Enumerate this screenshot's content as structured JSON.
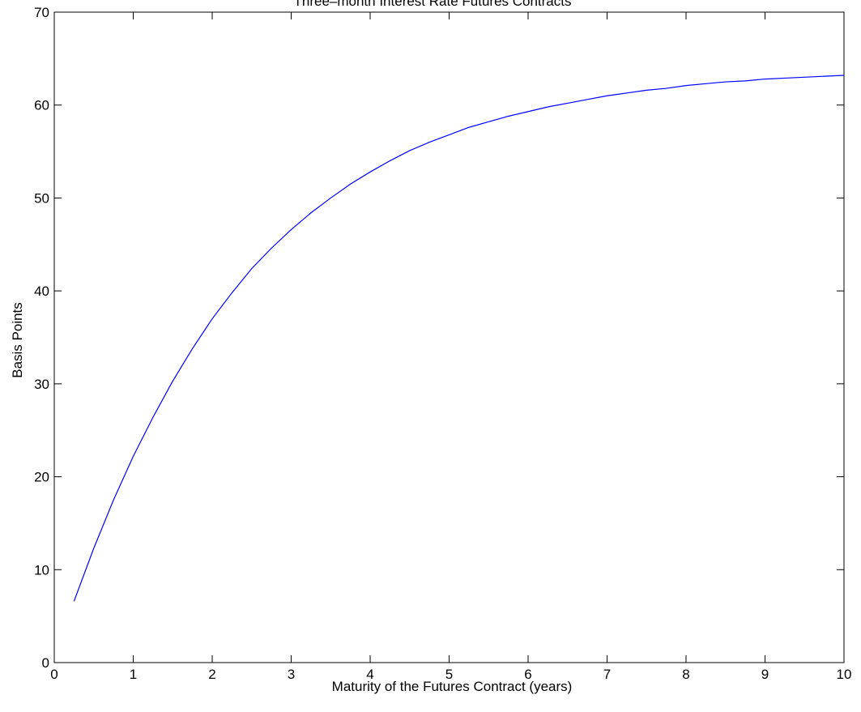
{
  "chart_data": {
    "type": "line",
    "title": "Three–month Interest Rate Futures Contracts",
    "xlabel": "Maturity of the Futures Contract (years)",
    "ylabel": "Basis Points",
    "xlim": [
      0,
      10
    ],
    "ylim": [
      0,
      70
    ],
    "xticks": [
      "0",
      "1",
      "2",
      "3",
      "4",
      "5",
      "6",
      "7",
      "8",
      "9",
      "10"
    ],
    "yticks": [
      "0",
      "10",
      "20",
      "30",
      "40",
      "50",
      "60",
      "70"
    ],
    "grid": false,
    "box": true,
    "series": [
      {
        "color": "#0000ff",
        "x": [
          0.25,
          0.5,
          0.75,
          1.0,
          1.25,
          1.5,
          1.75,
          2.0,
          2.25,
          2.5,
          2.75,
          3.0,
          3.25,
          3.5,
          3.75,
          4.0,
          4.25,
          4.5,
          4.75,
          5.0,
          5.25,
          5.5,
          5.75,
          6.0,
          6.25,
          6.5,
          6.75,
          7.0,
          7.25,
          7.5,
          7.75,
          8.0,
          8.25,
          8.5,
          8.75,
          9.0,
          9.25,
          9.5,
          9.75,
          10.0
        ],
        "y": [
          6.6,
          12.3,
          17.5,
          22.2,
          26.4,
          30.3,
          33.8,
          37.0,
          39.8,
          42.4,
          44.6,
          46.6,
          48.4,
          50.0,
          51.5,
          52.8,
          54.0,
          55.1,
          56.0,
          56.8,
          57.6,
          58.2,
          58.8,
          59.3,
          59.8,
          60.2,
          60.6,
          61.0,
          61.3,
          61.6,
          61.8,
          62.1,
          62.3,
          62.5,
          62.6,
          62.8,
          62.9,
          63.0,
          63.1,
          63.2
        ]
      }
    ]
  }
}
